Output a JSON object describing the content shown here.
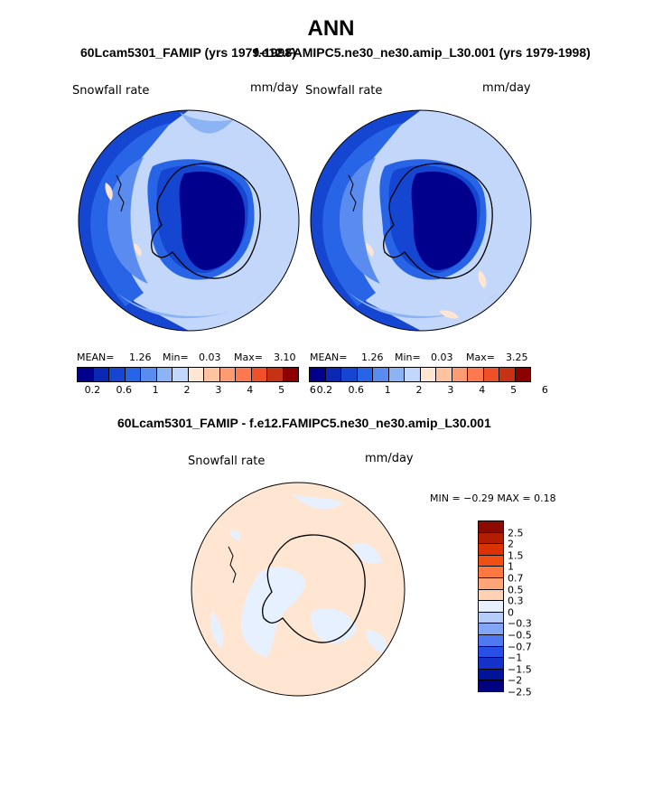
{
  "header": {
    "season": "ANN",
    "case1_title": "60Lcam5301_FAMIP (yrs 1979-1998)",
    "case2_title": "f.e12.FAMIPC5.ne30_ne30.amip_L30.001 (yrs 1979-1998)",
    "diff_title": "60Lcam5301_FAMIP - f.e12.FAMIPC5.ne30_ne30.amip_L30.001"
  },
  "panels": [
    {
      "variable": "Snowfall rate",
      "units": "mm/day",
      "mean_label": "MEAN=",
      "mean": "1.26",
      "min_label": "Min=",
      "min": "0.03",
      "max_label": "Max=",
      "max": "3.10"
    },
    {
      "variable": "Snowfall rate",
      "units": "mm/day",
      "mean_label": "MEAN=",
      "mean": "1.26",
      "min_label": "Min=",
      "min": "0.03",
      "max_label": "Max=",
      "max": "3.25"
    }
  ],
  "diff_panel": {
    "variable": "Snowfall rate",
    "units": "mm/day",
    "minmax": "MIN =  −0.29  MAX =    0.18"
  },
  "colorbar": {
    "colors": [
      "#00008c",
      "#0a28b4",
      "#1446d2",
      "#2864e6",
      "#5a8cf0",
      "#8cb4f5",
      "#c3d7fa",
      "#ffe6d2",
      "#ffc3a0",
      "#ff9b73",
      "#ff7850",
      "#f05028",
      "#c83214",
      "#8c0000"
    ],
    "ticks": [
      "0.2",
      "0.6",
      "1",
      "2",
      "3",
      "4",
      "5",
      "6"
    ]
  },
  "diff_colorbar": {
    "colors": [
      "#8c0a00",
      "#b41e00",
      "#dc3200",
      "#f05014",
      "#ff7841",
      "#ffa578",
      "#ffd2b4",
      "#e6f0ff",
      "#b4cdfa",
      "#82a5f5",
      "#5078f0",
      "#2850e6",
      "#1432c8",
      "#00149b",
      "#000080"
    ],
    "labels": [
      "2.5",
      "2",
      "1.5",
      "1",
      "0.7",
      "0.5",
      "0.3",
      "0",
      "−0.3",
      "−0.5",
      "−0.7",
      "−1",
      "−1.5",
      "−2",
      "−2.5"
    ]
  }
}
